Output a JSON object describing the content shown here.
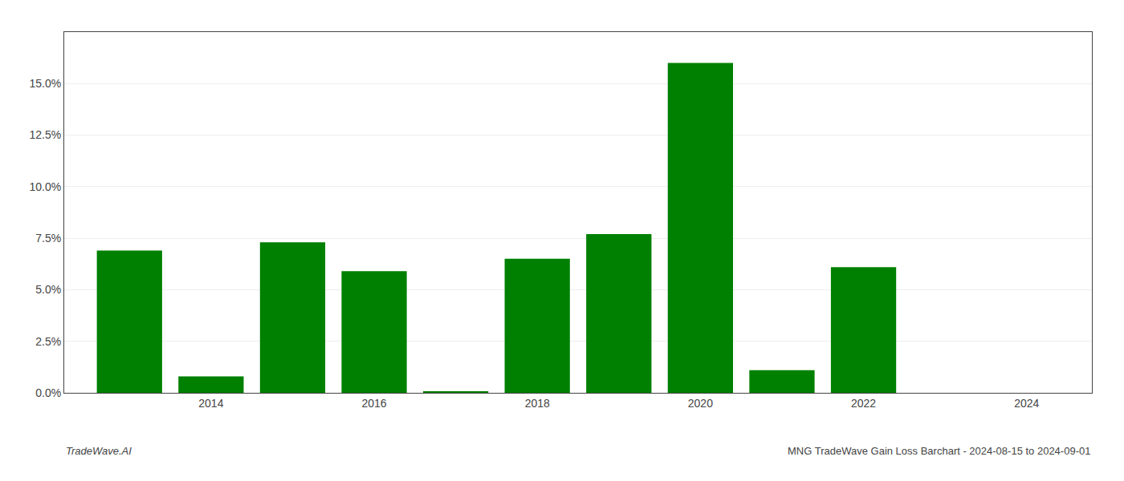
{
  "chart_data": {
    "type": "bar",
    "x": [
      2013,
      2014,
      2015,
      2016,
      2017,
      2018,
      2019,
      2020,
      2021,
      2022,
      2023
    ],
    "values": [
      0.069,
      0.008,
      0.073,
      0.059,
      0.0005,
      0.065,
      0.077,
      0.16,
      0.011,
      0.061,
      0.0
    ],
    "color": "#008000",
    "xlim": [
      2012.2,
      2024.8
    ],
    "xticks": [
      2014,
      2016,
      2018,
      2020,
      2022,
      2024
    ],
    "ylim": [
      0,
      0.175
    ],
    "yticks": [
      {
        "value": 0.0,
        "label": "0.0%"
      },
      {
        "value": 0.025,
        "label": "2.5%"
      },
      {
        "value": 0.05,
        "label": "5.0%"
      },
      {
        "value": 0.075,
        "label": "7.5%"
      },
      {
        "value": 0.1,
        "label": "10.0%"
      },
      {
        "value": 0.125,
        "label": "12.5%"
      },
      {
        "value": 0.15,
        "label": "15.0%"
      }
    ],
    "grid": "y",
    "annotations": [
      {
        "text": "TradeWave.AI"
      },
      {
        "text": "MNG TradeWave Gain Loss Barchart - 2024-08-15 to 2024-09-01"
      }
    ]
  }
}
